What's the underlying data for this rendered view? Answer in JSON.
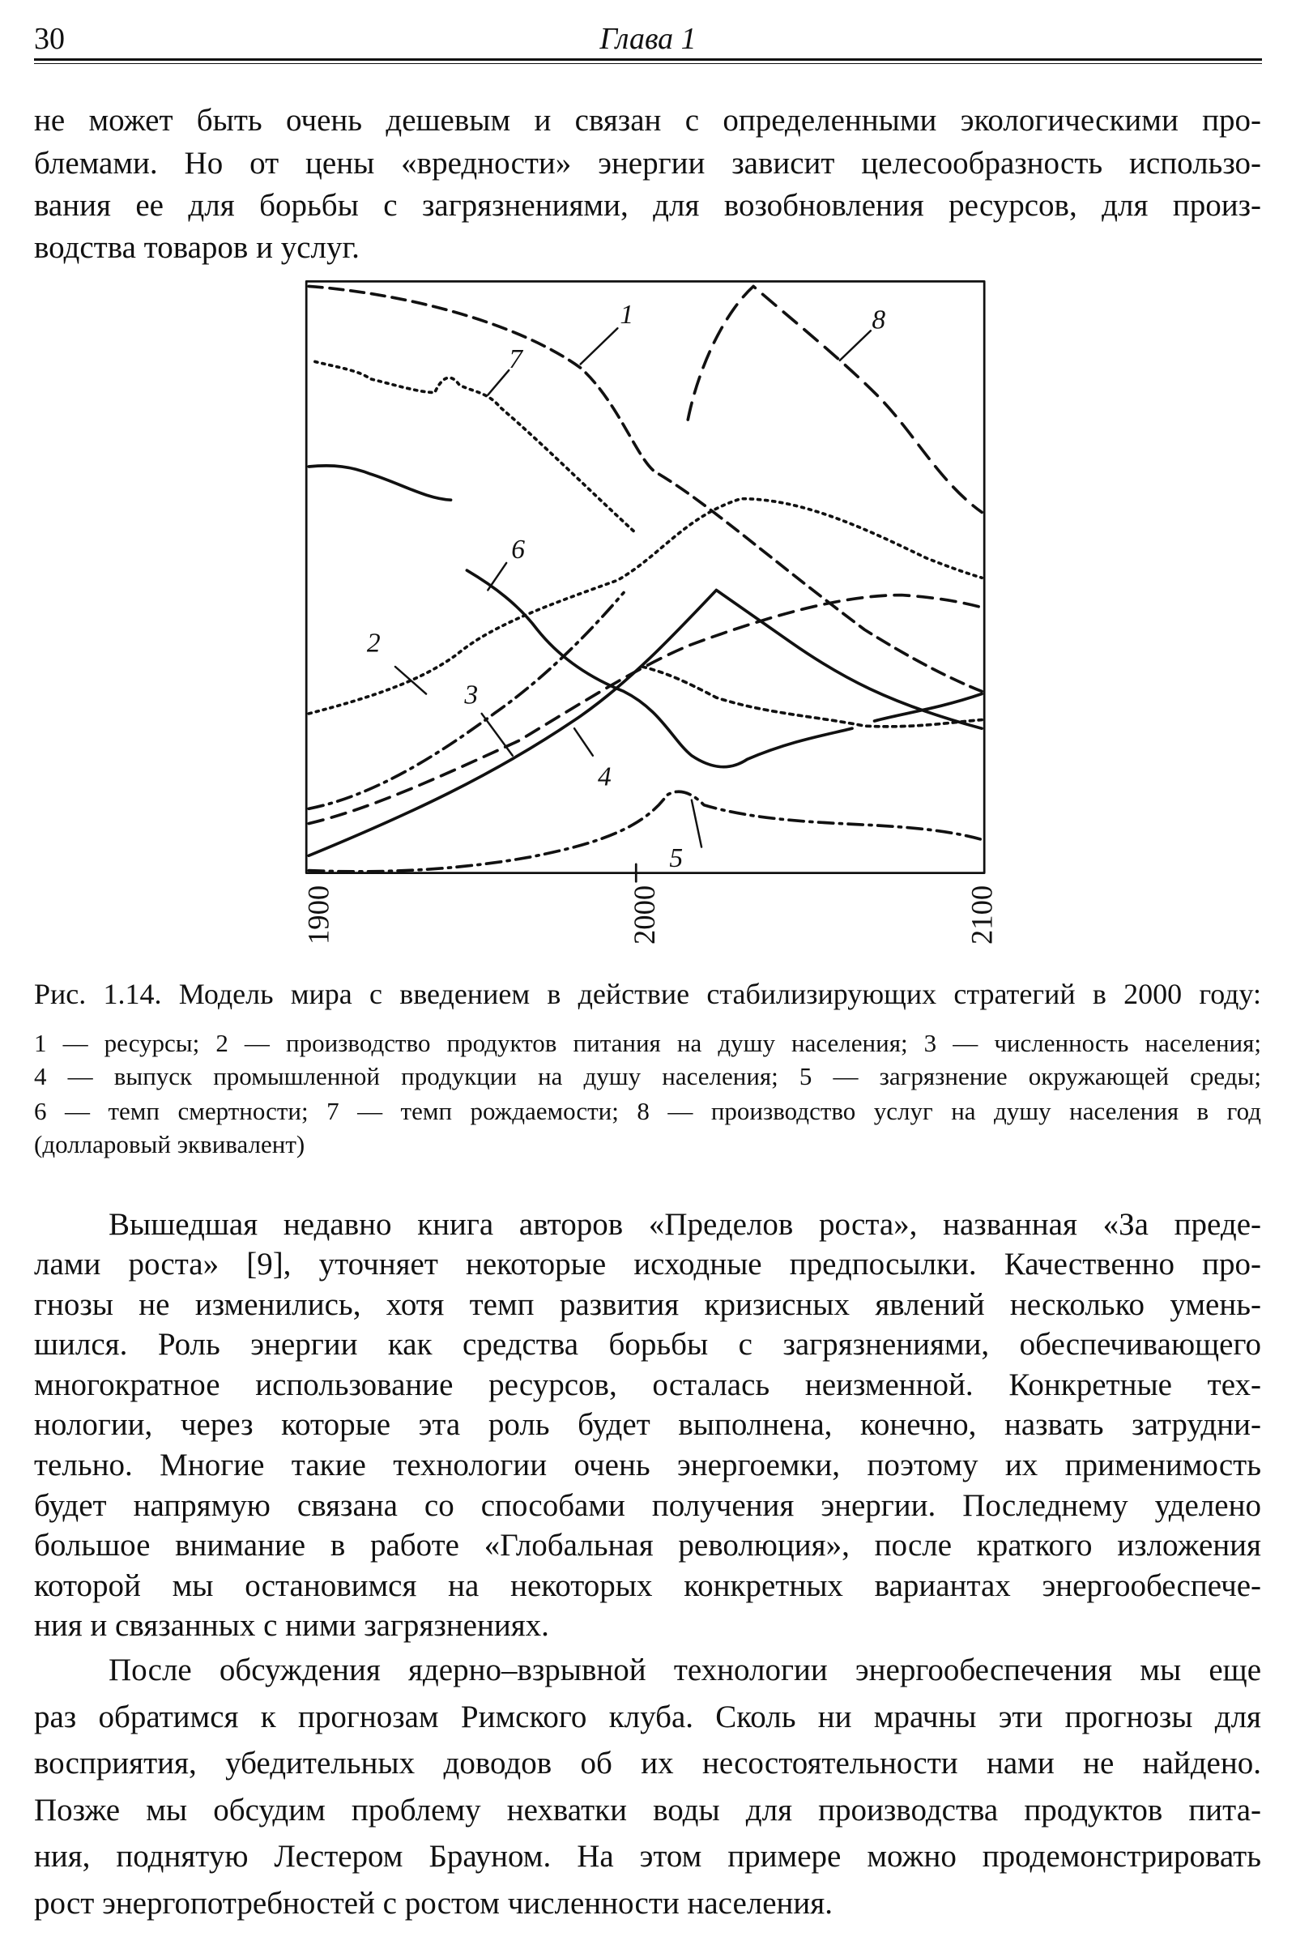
{
  "header": {
    "page_number": "30",
    "title": "Глава 1"
  },
  "paragraphs": [
    [
      "не может быть очень дешевым и связан с определенными экологическими про-",
      "блемами. Но от цены «вредности» энергии зависит целесообразность использо-",
      "вания ее для борьбы с загрязнениями, для возобновления ресурсов, для произ-",
      "водства товаров и услуг."
    ],
    [
      "Вышедшая недавно книга авторов «Пределов роста», названная «За преде-",
      "лами роста» [9], уточняет некоторые исходные предпосылки. Качественно про-",
      "гнозы не изменились, хотя темп развития кризисных явлений несколько умень-",
      "шился. Роль энергии как средства борьбы с загрязнениями, обеспечивающего",
      "многократное использование ресурсов, осталась неизменной. Конкретные тех-",
      "нологии, через которые эта роль будет выполнена, конечно, назвать затрудни-",
      "тельно. Многие такие технологии очень энергоемки, поэтому их применимость",
      "будет напрямую связана со способами получения энергии. Последнему уделено",
      "большое внимание в работе «Глобальная революция», после краткого изложения",
      "которой мы остановимся на некоторых конкретных вариантах энергообеспече-",
      "ния и связанных с ними загрязнениях."
    ],
    [
      "После обсуждения ядерно–взрывной технологии энергообеспечения мы еще",
      "раз обратимся к прогнозам Римского клуба. Сколь ни мрачны эти прогнозы для",
      "восприятия, убедительных доводов об их несостоятельности нами не найдено.",
      "Позже мы обсудим проблему нехватки воды для производства продуктов пита-",
      "ния, поднятую Лестером Брауном. На этом примере можно продемонстрировать",
      "рост энергопотребностей с ростом численности населения."
    ]
  ],
  "figure": {
    "x_ticks": [
      "1900",
      "2000",
      "2100"
    ],
    "curve_labels": [
      "1",
      "2",
      "3",
      "4",
      "5",
      "6",
      "7",
      "8"
    ],
    "caption": "Рис. 1.14. Модель мира с введением в действие стабилизирующих стратегий в 2000 году:",
    "legend_lines": [
      "1 — ресурсы; 2 — производство продуктов питания на душу населения; 3 — численность населения;",
      "4 — выпуск промышленной продукции на душу населения; 5 — загрязнение окружающей среды;",
      "6 — темп смертности; 7 — темп рождаемости; 8 — производство услуг на душу населения в год",
      "(долларовый эквивалент)"
    ]
  }
}
